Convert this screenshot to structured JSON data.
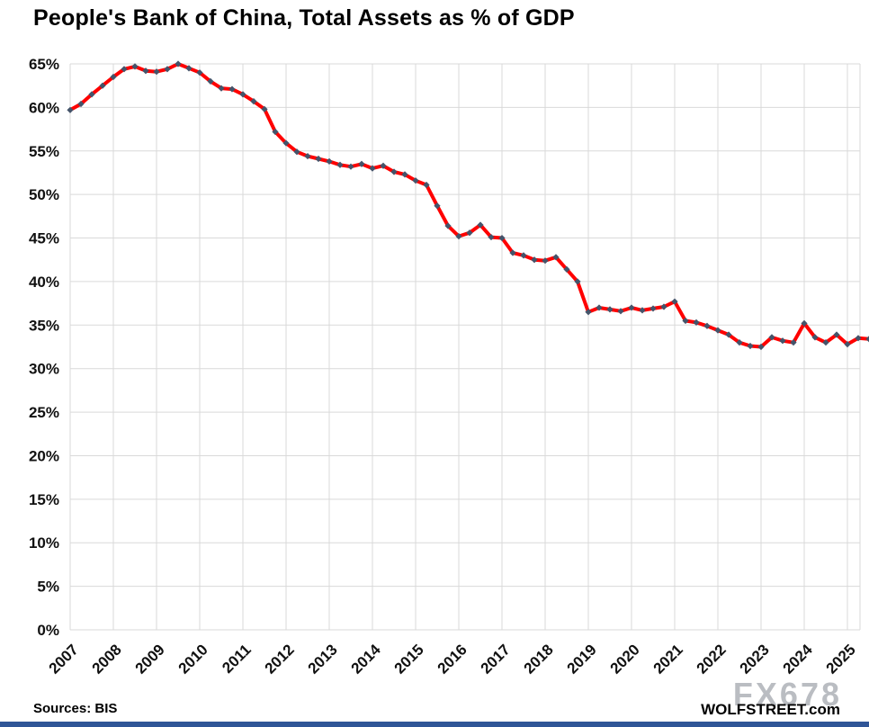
{
  "title": "People's Bank of China, Total Assets as % of GDP",
  "footer": {
    "sources": "Sources: BIS",
    "brand": "WOLFSTREET.com",
    "watermark": "FX678"
  },
  "chart_data": {
    "type": "line",
    "title": "People's Bank of China, Total Assets as % of GDP",
    "series_name": "PBOC total assets as % of GDP",
    "freq": "quarterly",
    "start": "2007-Q1",
    "end": "2025-Q3",
    "x_start": 2007,
    "x_step": 0.25,
    "values": [
      59.7,
      60.4,
      61.5,
      62.5,
      63.5,
      64.4,
      64.7,
      64.2,
      64.1,
      64.4,
      65.0,
      64.5,
      64.0,
      63.0,
      62.2,
      62.1,
      61.5,
      60.7,
      59.8,
      57.2,
      55.9,
      54.9,
      54.4,
      54.1,
      53.8,
      53.4,
      53.2,
      53.5,
      53.0,
      53.3,
      52.6,
      52.3,
      51.6,
      51.1,
      48.7,
      46.4,
      45.2,
      45.6,
      46.5,
      45.1,
      45.0,
      43.3,
      43.0,
      42.5,
      42.4,
      42.8,
      41.4,
      40.0,
      36.5,
      37.0,
      36.8,
      36.6,
      37.0,
      36.7,
      36.9,
      37.1,
      37.7,
      35.5,
      35.3,
      34.9,
      34.4,
      33.9,
      33.0,
      32.6,
      32.5,
      33.6,
      33.2,
      33.0,
      35.2,
      33.6,
      33.0,
      33.9,
      32.8,
      33.5,
      33.4
    ],
    "x_tick_labels": [
      "2007",
      "2008",
      "2009",
      "2010",
      "2011",
      "2012",
      "2013",
      "2014",
      "2015",
      "2016",
      "2017",
      "2018",
      "2019",
      "2020",
      "2021",
      "2022",
      "2023",
      "2024",
      "2025"
    ],
    "y_ticks": [
      0,
      5,
      10,
      15,
      20,
      25,
      30,
      35,
      40,
      45,
      50,
      55,
      60,
      65
    ],
    "y_tick_suffix": "%",
    "ylim": [
      0,
      65
    ],
    "grid": true,
    "legend": "none",
    "line_color": "#ff0000",
    "marker_color": "#44546a",
    "grid_color": "#d9d9d9",
    "text_color": "#111111",
    "accent_bar_color": "#2f5597"
  }
}
